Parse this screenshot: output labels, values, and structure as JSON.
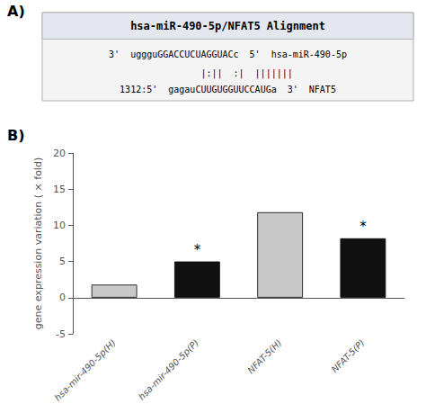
{
  "chart_data": {
    "type": "bar",
    "title": "hsa-miR-490-5p/NFAT5 Alignment",
    "panel_labels": [
      "A)",
      "B)"
    ],
    "alignment": [
      "3'  uggguGGACCUCUAGGUACc  5'  hsa-miR-490-5p",
      "       |:||  :|  |||||||",
      "1312:5'  gagauCUUGUGGUUCCAUGa  3'  NFAT5"
    ],
    "categories": [
      "hsa-mir-490-5p(H)",
      "hsa-mir-490-5p(P)",
      "NFAT-5(H)",
      "NFAT-5(P)"
    ],
    "values": [
      1.8,
      5.0,
      11.8,
      8.2
    ],
    "colors": [
      "#c8c8c8",
      "#111111",
      "#c8c8c8",
      "#111111"
    ],
    "ylabel": "gene expression variation ( × fold)",
    "ylim": [
      -5,
      20
    ],
    "yticks": [
      -5,
      0,
      5,
      10,
      15,
      20
    ],
    "annotations": [
      {
        "text": "*",
        "category": "hsa-mir-490-5p(P)"
      },
      {
        "text": "*",
        "category": "NFAT-5(P)"
      }
    ],
    "grid": false
  }
}
